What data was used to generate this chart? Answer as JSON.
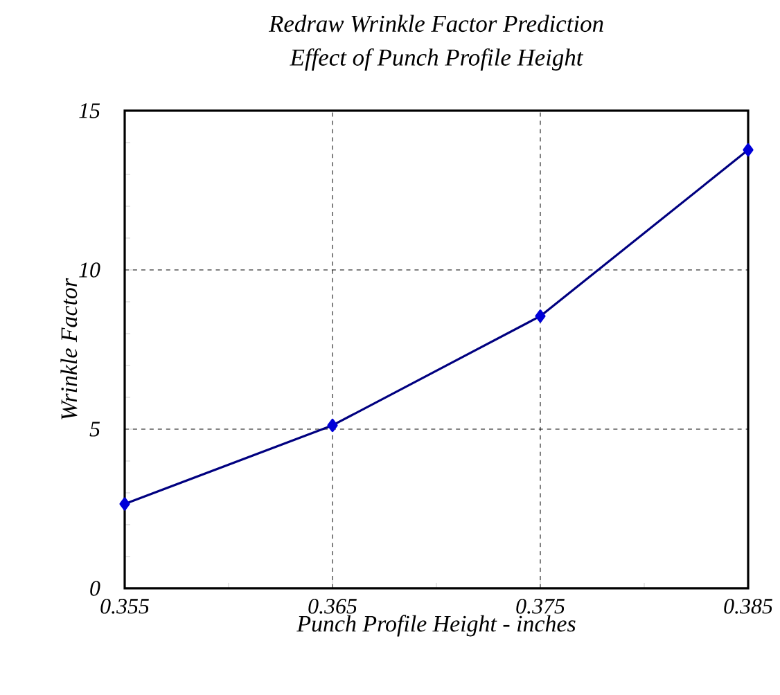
{
  "chart_data": {
    "type": "line",
    "title": "Redraw Wrinkle Factor Prediction",
    "subtitle": "Effect of Punch Profile Height",
    "xlabel": "Punch Profile Height - inches",
    "ylabel": "Wrinkle Factor",
    "x": [
      0.355,
      0.365,
      0.375,
      0.385
    ],
    "series": [
      {
        "color": "#000080",
        "values": [
          2.65,
          5.12,
          8.55,
          13.77
        ]
      }
    ],
    "xlim": [
      0.355,
      0.385
    ],
    "xticks": [
      0.355,
      0.365,
      0.375,
      0.385
    ],
    "ylim": [
      0,
      15
    ],
    "yticks": [
      0,
      5,
      10,
      15
    ],
    "grid": true,
    "marker": "diamond",
    "line_style": "solid"
  }
}
